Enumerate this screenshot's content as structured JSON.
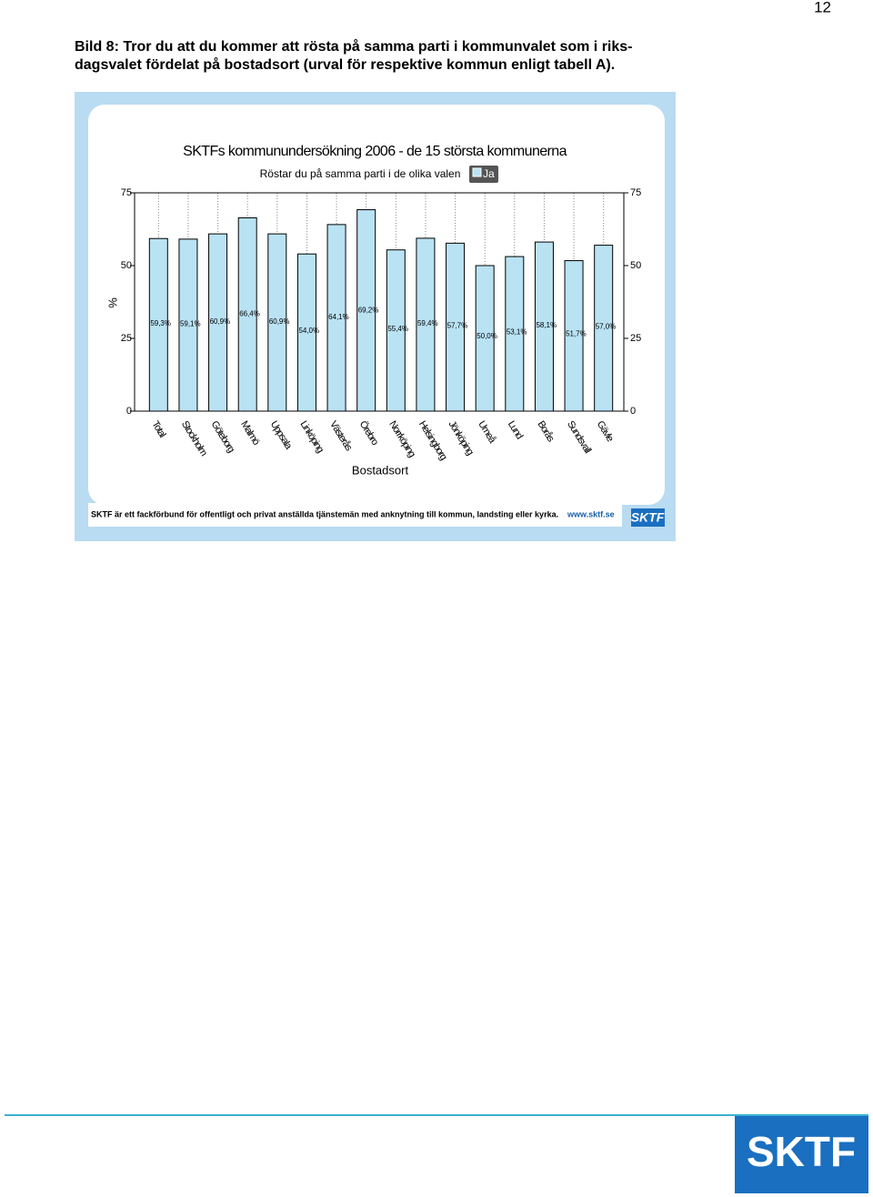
{
  "page_number": "12",
  "heading": [
    "Bild 8: Tror du att du kommer att rösta på samma parti i kommunvalet som i riks-",
    "dagsvalet fördelat på bostadsort (urval för respektive kommun enligt tabell A)."
  ],
  "chart_data": {
    "type": "bar",
    "title": "SKTFs kommunundersökning 2006 - de 15 största kommunerna",
    "subtitle": "Röstar du på samma parti i de olika valen",
    "x_label": "Bostadsort",
    "y_label": "%",
    "categories": [
      "Total",
      "Stockholm",
      "Göteborg",
      "Malmö",
      "Uppsala",
      "Linköping",
      "Västerås",
      "Örebro",
      "Norrköping",
      "Helsingborg",
      "Jönköping",
      "Umeå",
      "Lund",
      "Borås",
      "Sundsvall",
      "Gävle"
    ],
    "series": [
      {
        "name": "Ja",
        "color": "#b9e2f3",
        "values": [
          59.3,
          59.1,
          60.9,
          66.4,
          60.9,
          54.0,
          64.1,
          69.2,
          55.4,
          59.4,
          57.7,
          50.0,
          53.1,
          58.1,
          51.7,
          57.0
        ],
        "value_labels": [
          "59,3%",
          "59,1%",
          "60,9%",
          "66,4%",
          "60,9%",
          "54,0%",
          "64,1%",
          "69,2%",
          "55,4%",
          "59,4%",
          "57,7%",
          "50,0%",
          "53,1%",
          "58,1%",
          "51,7%",
          "57,0%"
        ]
      }
    ],
    "ylim": [
      0,
      75
    ],
    "yticks": [
      0,
      25,
      50,
      75
    ],
    "y2lim": [
      0,
      75
    ],
    "y2ticks": [
      0,
      25,
      50,
      75
    ]
  },
  "footer": {
    "text": "SKTF är ett fackförbund för offentligt och privat anställda tjänstemän med anknytning till kommun, landsting eller kyrka.",
    "link": "www.sktf.se",
    "logo": "SKTF"
  },
  "page_logo": "SKTF"
}
